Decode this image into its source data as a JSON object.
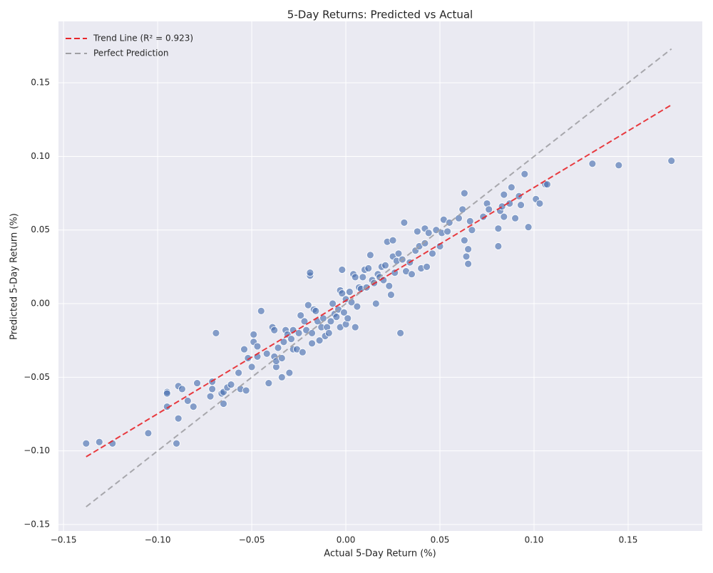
{
  "chart_data": {
    "type": "scatter",
    "title": "5-Day Returns: Predicted vs Actual",
    "x_label": "Actual 5-Day Return (%)",
    "y_label": "Predicted 5-Day Return (%)",
    "color": "#4c72b0",
    "grid": true,
    "legend": "upper left",
    "xlim": [
      -0.1527,
      0.1894
    ],
    "ylim": [
      -0.1544,
      0.1917
    ],
    "xticks": [
      {
        "value": -0.15,
        "label": "−0.15"
      },
      {
        "value": -0.1,
        "label": "−0.10"
      },
      {
        "value": -0.05,
        "label": "−0.05"
      },
      {
        "value": 0,
        "label": "0.00"
      },
      {
        "value": 0.05,
        "label": "0.05"
      },
      {
        "value": 0.1,
        "label": "0.10"
      },
      {
        "value": 0.15,
        "label": "0.15"
      }
    ],
    "yticks": [
      {
        "value": -0.15,
        "label": "−0.15"
      },
      {
        "value": -0.1,
        "label": "−0.10"
      },
      {
        "value": -0.05,
        "label": "−0.05"
      },
      {
        "value": 0,
        "label": "0.00"
      },
      {
        "value": 0.05,
        "label": "0.05"
      },
      {
        "value": 0.1,
        "label": "0.10"
      },
      {
        "value": 0.15,
        "label": "0.15"
      }
    ],
    "x": [
      -0.138,
      -0.131,
      -0.124,
      -0.105,
      -0.095,
      -0.095,
      -0.095,
      -0.09,
      -0.089,
      -0.089,
      -0.087,
      -0.084,
      -0.081,
      -0.079,
      -0.072,
      -0.071,
      -0.071,
      -0.069,
      -0.066,
      -0.065,
      -0.065,
      -0.063,
      -0.061,
      -0.057,
      -0.056,
      -0.054,
      -0.053,
      -0.052,
      -0.05,
      -0.049,
      -0.049,
      -0.047,
      -0.047,
      -0.045,
      -0.042,
      -0.041,
      -0.039,
      -0.038,
      -0.038,
      -0.037,
      -0.037,
      -0.036,
      -0.034,
      -0.034,
      -0.033,
      -0.032,
      -0.031,
      -0.03,
      -0.029,
      -0.028,
      -0.028,
      -0.026,
      -0.025,
      -0.024,
      -0.023,
      -0.022,
      -0.021,
      -0.02,
      -0.019,
      -0.019,
      -0.018,
      -0.018,
      -0.017,
      -0.016,
      -0.015,
      -0.014,
      -0.013,
      -0.012,
      -0.011,
      -0.01,
      -0.009,
      -0.008,
      -0.007,
      -0.006,
      -0.005,
      -0.004,
      -0.003,
      -0.003,
      -0.002,
      -0.002,
      -0.001,
      0,
      0,
      0.001,
      0.002,
      0.003,
      0.004,
      0.005,
      0.005,
      0.006,
      0.007,
      0.008,
      0.009,
      0.01,
      0.011,
      0.012,
      0.013,
      0.014,
      0.015,
      0.016,
      0.017,
      0.018,
      0.019,
      0.02,
      0.021,
      0.022,
      0.023,
      0.024,
      0.025,
      0.025,
      0.026,
      0.027,
      0.028,
      0.029,
      0.03,
      0.031,
      0.032,
      0.034,
      0.035,
      0.037,
      0.038,
      0.039,
      0.04,
      0.042,
      0.042,
      0.043,
      0.044,
      0.046,
      0.048,
      0.05,
      0.051,
      0.052,
      0.054,
      0.055,
      0.06,
      0.062,
      0.063,
      0.063,
      0.064,
      0.065,
      0.065,
      0.066,
      0.067,
      0.073,
      0.075,
      0.076,
      0.081,
      0.081,
      0.082,
      0.083,
      0.084,
      0.084,
      0.087,
      0.088,
      0.09,
      0.092,
      0.093,
      0.095,
      0.097,
      0.101,
      0.103,
      0.106,
      0.107,
      0.131,
      0.145,
      0.173
    ],
    "values": [
      -0.095,
      -0.094,
      -0.095,
      -0.088,
      -0.06,
      -0.061,
      -0.07,
      -0.095,
      -0.078,
      -0.056,
      -0.058,
      -0.066,
      -0.07,
      -0.054,
      -0.063,
      -0.053,
      -0.058,
      -0.02,
      -0.061,
      -0.068,
      -0.06,
      -0.057,
      -0.055,
      -0.047,
      -0.058,
      -0.031,
      -0.059,
      -0.037,
      -0.043,
      -0.026,
      -0.021,
      -0.029,
      -0.036,
      -0.005,
      -0.034,
      -0.054,
      -0.016,
      -0.036,
      -0.018,
      -0.043,
      -0.039,
      -0.03,
      -0.05,
      -0.037,
      -0.026,
      -0.018,
      -0.021,
      -0.047,
      -0.024,
      -0.031,
      -0.018,
      -0.031,
      -0.02,
      -0.008,
      -0.033,
      -0.012,
      -0.018,
      -0.001,
      0.019,
      0.021,
      -0.027,
      -0.02,
      -0.004,
      -0.005,
      -0.012,
      -0.025,
      -0.016,
      -0.01,
      -0.022,
      -0.016,
      -0.02,
      -0.012,
      0,
      -0.007,
      -0.009,
      -0.004,
      -0.016,
      0.009,
      0.007,
      0.023,
      -0.006,
      -0.014,
      0.003,
      -0.01,
      0.008,
      0.001,
      0.02,
      -0.016,
      0.018,
      -0.002,
      0.011,
      0.01,
      0.018,
      0.023,
      0.011,
      0.024,
      0.033,
      0.016,
      0.014,
      0,
      0.02,
      0.018,
      0.025,
      0.016,
      0.026,
      0.042,
      0.012,
      0.006,
      0.032,
      0.043,
      0.021,
      0.029,
      0.034,
      -0.02,
      0.03,
      0.055,
      0.022,
      0.028,
      0.02,
      0.036,
      0.049,
      0.039,
      0.024,
      0.041,
      0.051,
      0.025,
      0.048,
      0.034,
      0.05,
      0.039,
      0.048,
      0.057,
      0.049,
      0.055,
      0.058,
      0.064,
      0.075,
      0.043,
      0.032,
      0.027,
      0.037,
      0.056,
      0.05,
      0.059,
      0.068,
      0.064,
      0.051,
      0.039,
      0.063,
      0.066,
      0.074,
      0.059,
      0.068,
      0.079,
      0.058,
      0.073,
      0.067,
      0.088,
      0.052,
      0.071,
      0.068,
      0.081,
      0.081,
      0.095,
      0.094,
      0.097
    ],
    "lines": [
      {
        "name": "Trend Line (R² = 0.923)",
        "color": "#e8262a",
        "dash": "8 4",
        "x": [
          -0.138,
          0.173
        ],
        "values": [
          -0.104,
          0.135
        ]
      },
      {
        "name": "Perfect Prediction",
        "color": "#a0a0a4",
        "dash": "8 5",
        "x": [
          -0.138,
          0.173
        ],
        "values": [
          -0.138,
          0.173
        ]
      }
    ]
  }
}
